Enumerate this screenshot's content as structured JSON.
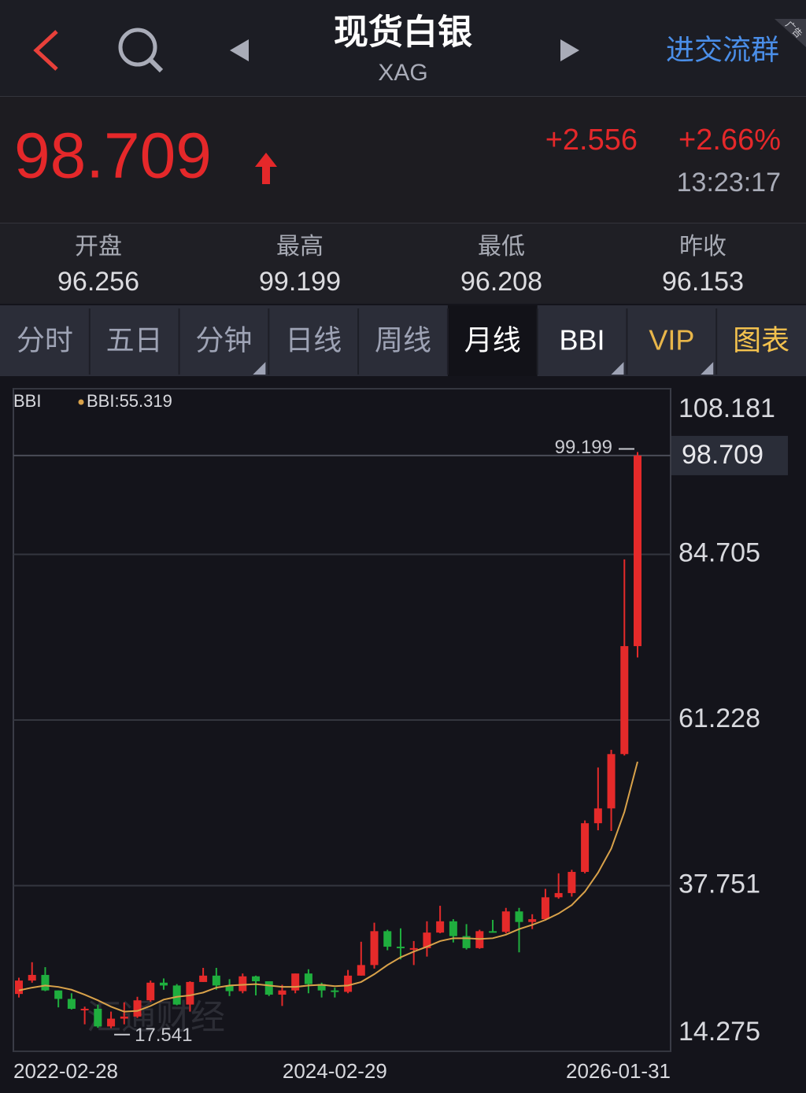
{
  "header": {
    "title": "现货白银",
    "subtitle": "XAG",
    "link": "进交流群",
    "ad": "广告"
  },
  "quote": {
    "price": "98.709",
    "change": "+2.556",
    "change_pct": "+2.66%",
    "time": "13:23:17"
  },
  "stats": [
    {
      "label": "开盘",
      "value": "96.256"
    },
    {
      "label": "最高",
      "value": "99.199"
    },
    {
      "label": "最低",
      "value": "96.208"
    },
    {
      "label": "昨收",
      "value": "96.153"
    }
  ],
  "tabs": [
    "分时",
    "五日",
    "分钟",
    "日线",
    "周线",
    "月线",
    "BBI",
    "VIP",
    "图表"
  ],
  "chart_data": {
    "type": "candlestick",
    "indicator": "BBI",
    "watermark": "汇通财经",
    "categories": [
      "2022-02-28",
      null,
      null,
      null,
      null,
      null,
      null,
      null,
      null,
      null,
      null,
      null,
      null,
      null,
      null,
      null,
      null,
      null,
      null,
      null,
      null,
      null,
      null,
      null,
      "2024-02-29",
      null,
      null,
      null,
      null,
      null,
      null,
      null,
      null,
      null,
      null,
      null,
      null,
      null,
      null,
      null,
      null,
      null,
      null,
      null,
      null,
      null,
      null,
      "2026-01-31"
    ],
    "open": [
      22.4,
      24.3,
      25.1,
      22.9,
      21.7,
      20.3,
      20.3,
      17.8,
      18.9,
      19.2,
      21.5,
      24.0,
      23.6,
      20.9,
      24.1,
      25.0,
      23.6,
      22.8,
      24.9,
      24.2,
      22.3,
      22.9,
      25.3,
      23.8,
      22.9,
      22.7,
      25.0,
      26.5,
      31.3,
      29.1,
      28.9,
      28.9,
      31.1,
      32.7,
      30.6,
      28.9,
      31.3,
      31.2,
      34.1,
      32.6,
      33.0,
      36.1,
      36.7,
      39.7,
      46.6,
      48.7,
      56.4,
      71.7
    ],
    "high": [
      24.7,
      26.9,
      26.2,
      22.9,
      22.5,
      20.6,
      20.9,
      19.9,
      21.2,
      22.0,
      24.3,
      24.6,
      23.8,
      24.2,
      26.1,
      26.1,
      24.5,
      25.3,
      25.0,
      24.2,
      23.7,
      25.3,
      25.9,
      24.0,
      23.3,
      25.8,
      29.8,
      32.5,
      31.5,
      31.7,
      29.9,
      32.7,
      34.9,
      33.0,
      32.3,
      31.5,
      32.9,
      34.6,
      34.6,
      33.7,
      37.3,
      39.5,
      40.0,
      47.0,
      54.5,
      57.0,
      84.0,
      99.199
    ],
    "low": [
      21.9,
      24.0,
      22.8,
      20.5,
      20.2,
      18.1,
      17.6,
      17.541,
      18.1,
      19.0,
      21.3,
      23.0,
      20.8,
      19.9,
      24.1,
      23.0,
      22.1,
      22.5,
      22.2,
      22.1,
      20.7,
      22.5,
      22.5,
      21.9,
      21.9,
      22.5,
      25.0,
      26.0,
      28.6,
      27.3,
      26.5,
      27.7,
      31.0,
      29.7,
      28.7,
      28.8,
      31.1,
      31.0,
      28.3,
      31.6,
      32.8,
      35.9,
      36.2,
      39.5,
      45.6,
      45.5,
      56.2,
      70.1
    ],
    "close": [
      24.3,
      25.1,
      22.9,
      21.7,
      20.3,
      20.3,
      17.8,
      18.9,
      19.2,
      21.5,
      24.0,
      23.6,
      20.9,
      24.1,
      25.0,
      23.6,
      22.8,
      24.9,
      24.2,
      22.3,
      22.9,
      25.3,
      23.8,
      22.9,
      22.7,
      25.0,
      26.5,
      31.3,
      29.1,
      28.9,
      28.9,
      31.1,
      32.7,
      30.6,
      28.9,
      31.3,
      31.2,
      34.1,
      32.6,
      33.0,
      36.1,
      36.7,
      39.7,
      46.6,
      48.7,
      56.4,
      71.7,
      98.709
    ],
    "up_color": "#e52a2a",
    "down_color": "#1fae3e",
    "bbi": {
      "name": "BBI",
      "label": "BBI:55.319",
      "color": "#d9a24a",
      "values": [
        22.9,
        23.3,
        23.6,
        23.4,
        23.0,
        22.3,
        21.5,
        20.6,
        19.9,
        20.0,
        20.7,
        21.6,
        22.0,
        22.2,
        22.6,
        23.3,
        23.6,
        23.7,
        23.8,
        23.6,
        23.4,
        23.4,
        23.6,
        23.7,
        23.5,
        23.6,
        24.1,
        25.2,
        26.5,
        27.6,
        28.4,
        29.1,
        29.9,
        30.3,
        30.3,
        30.2,
        30.3,
        30.8,
        31.6,
        32.2,
        32.9,
        33.8,
        35.0,
        36.9,
        39.6,
        43.0,
        48.2,
        55.319
      ]
    },
    "ylim": [
      14.275,
      108.181
    ],
    "yticks": [
      108.181,
      84.705,
      61.228,
      37.751,
      14.275
    ],
    "grid": true
  }
}
